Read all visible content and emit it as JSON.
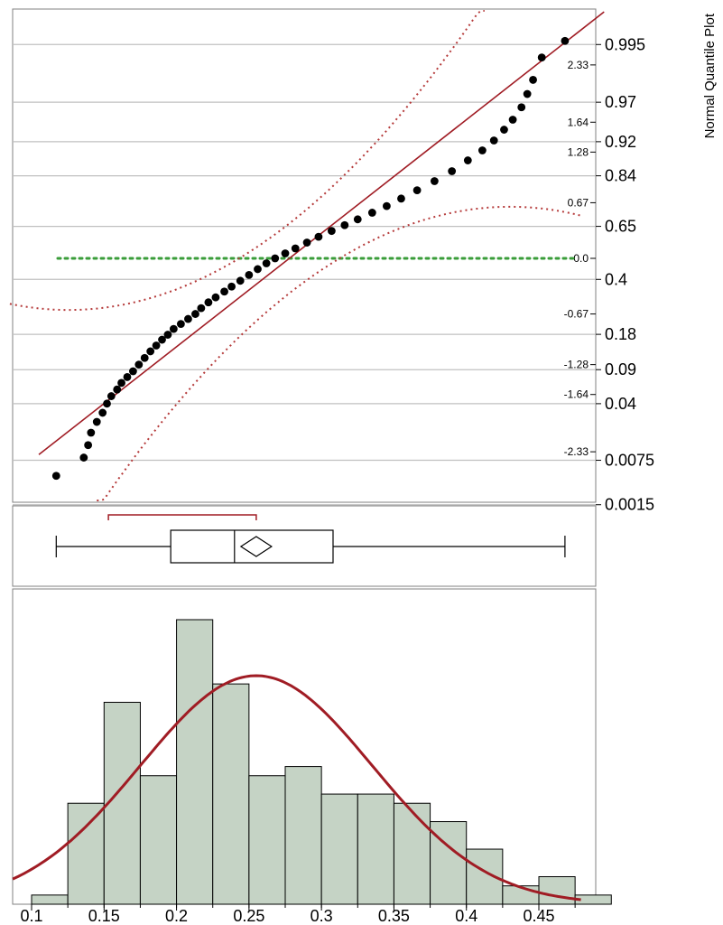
{
  "chart_data": {
    "type": "distribution",
    "quantile_plot": {
      "ylabel": "Normal Quantile Plot",
      "probability_ticks": [
        "0.995",
        "0.97",
        "0.92",
        "0.84",
        "0.65",
        "0.4",
        "0.18",
        "0.09",
        "0.04",
        "0.0075",
        "0.0015"
      ],
      "probability_values": [
        0.995,
        0.97,
        0.92,
        0.84,
        0.65,
        0.4,
        0.18,
        0.09,
        0.04,
        0.0075,
        0.0015
      ],
      "z_ticks": [
        "2.33",
        "1.64",
        "1.28",
        "0.67",
        "0.0",
        "-0.67",
        "-1.28",
        "-1.64",
        "-2.33"
      ],
      "z_values": [
        2.33,
        1.64,
        1.28,
        0.67,
        0.0,
        -0.67,
        -1.28,
        -1.64,
        -2.33
      ],
      "points": [
        [
          0.117,
          -2.62
        ],
        [
          0.136,
          -2.4
        ],
        [
          0.139,
          -2.25
        ],
        [
          0.141,
          -2.1
        ],
        [
          0.145,
          -1.97
        ],
        [
          0.149,
          -1.86
        ],
        [
          0.152,
          -1.75
        ],
        [
          0.155,
          -1.66
        ],
        [
          0.159,
          -1.58
        ],
        [
          0.162,
          -1.5
        ],
        [
          0.166,
          -1.43
        ],
        [
          0.17,
          -1.36
        ],
        [
          0.174,
          -1.28
        ],
        [
          0.178,
          -1.2
        ],
        [
          0.182,
          -1.12
        ],
        [
          0.186,
          -1.05
        ],
        [
          0.19,
          -0.98
        ],
        [
          0.194,
          -0.92
        ],
        [
          0.198,
          -0.85
        ],
        [
          0.203,
          -0.79
        ],
        [
          0.208,
          -0.73
        ],
        [
          0.213,
          -0.67
        ],
        [
          0.217,
          -0.6
        ],
        [
          0.222,
          -0.53
        ],
        [
          0.227,
          -0.47
        ],
        [
          0.233,
          -0.4
        ],
        [
          0.238,
          -0.34
        ],
        [
          0.244,
          -0.27
        ],
        [
          0.25,
          -0.2
        ],
        [
          0.256,
          -0.13
        ],
        [
          0.262,
          -0.06
        ],
        [
          0.268,
          0.0
        ],
        [
          0.275,
          0.06
        ],
        [
          0.282,
          0.12
        ],
        [
          0.29,
          0.19
        ],
        [
          0.298,
          0.26
        ],
        [
          0.307,
          0.33
        ],
        [
          0.316,
          0.4
        ],
        [
          0.325,
          0.47
        ],
        [
          0.335,
          0.55
        ],
        [
          0.345,
          0.63
        ],
        [
          0.355,
          0.72
        ],
        [
          0.366,
          0.82
        ],
        [
          0.378,
          0.93
        ],
        [
          0.39,
          1.05
        ],
        [
          0.401,
          1.18
        ],
        [
          0.411,
          1.3
        ],
        [
          0.419,
          1.42
        ],
        [
          0.426,
          1.55
        ],
        [
          0.432,
          1.67
        ],
        [
          0.438,
          1.82
        ],
        [
          0.442,
          1.98
        ],
        [
          0.446,
          2.15
        ],
        [
          0.452,
          2.42
        ],
        [
          0.468,
          2.62
        ]
      ],
      "fit_line": [
        [
          0.117,
          -2.2
        ],
        [
          0.468,
          2.6
        ]
      ],
      "reference_z": 0.0,
      "confidence_band": "dotted"
    },
    "box_plot": {
      "min": 0.117,
      "q1": 0.196,
      "median": 0.24,
      "q3": 0.308,
      "max": 0.468,
      "mean": 0.255,
      "shortest_half": [
        0.153,
        0.255
      ]
    },
    "histogram": {
      "xticks": [
        "0.1",
        "0.15",
        "0.2",
        "0.25",
        "0.3",
        "0.35",
        "0.4",
        "0.45"
      ],
      "xtick_values": [
        0.1,
        0.15,
        0.2,
        0.25,
        0.3,
        0.35,
        0.4,
        0.45
      ],
      "xlim": [
        0.085,
        0.485
      ],
      "bin_width": 0.025,
      "bins": [
        {
          "start": 0.1,
          "count": 1
        },
        {
          "start": 0.125,
          "count": 11
        },
        {
          "start": 0.15,
          "count": 22
        },
        {
          "start": 0.175,
          "count": 14
        },
        {
          "start": 0.2,
          "count": 31
        },
        {
          "start": 0.225,
          "count": 24
        },
        {
          "start": 0.25,
          "count": 14
        },
        {
          "start": 0.275,
          "count": 15
        },
        {
          "start": 0.3,
          "count": 12
        },
        {
          "start": 0.325,
          "count": 12
        },
        {
          "start": 0.35,
          "count": 11
        },
        {
          "start": 0.375,
          "count": 9
        },
        {
          "start": 0.4,
          "count": 6
        },
        {
          "start": 0.425,
          "count": 2
        },
        {
          "start": 0.45,
          "count": 3
        },
        {
          "start": 0.475,
          "count": 1
        }
      ],
      "normal_fit": {
        "mean": 0.255,
        "sd": 0.08
      },
      "colors": {
        "bar_fill": "#c5d3c5",
        "bar_stroke": "#000000",
        "curve": "#a01c24"
      }
    },
    "colors": {
      "fit_line": "#a01c24",
      "band": "#b53a3a",
      "reference": "#3a9d3a",
      "points": "#000000",
      "grid": "#c0c0c0",
      "axis": "#808080"
    }
  }
}
